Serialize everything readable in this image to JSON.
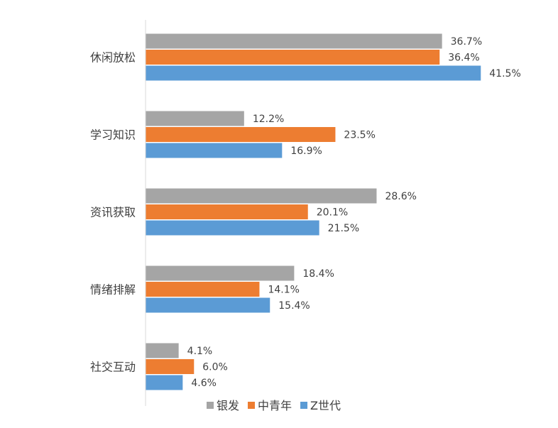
{
  "chart_data": {
    "type": "bar",
    "orientation": "horizontal",
    "categories": [
      "休闲放松",
      "学习知识",
      "资讯获取",
      "情绪排解",
      "社交互动"
    ],
    "series": [
      {
        "name": "银发",
        "values": [
          36.7,
          12.2,
          28.6,
          18.4,
          4.1
        ],
        "color": "#A5A5A5"
      },
      {
        "name": "中青年",
        "values": [
          36.4,
          23.5,
          20.1,
          14.1,
          6.0
        ],
        "color": "#ED7D31"
      },
      {
        "name": "Z世代",
        "values": [
          41.5,
          16.9,
          21.5,
          15.4,
          4.6
        ],
        "color": "#5B9BD5"
      }
    ],
    "value_suffix": "%",
    "title": "",
    "xlabel": "",
    "ylabel": "",
    "xlim": [
      0,
      50
    ],
    "grid": false,
    "legend_position": "bottom",
    "data_labels": true
  }
}
